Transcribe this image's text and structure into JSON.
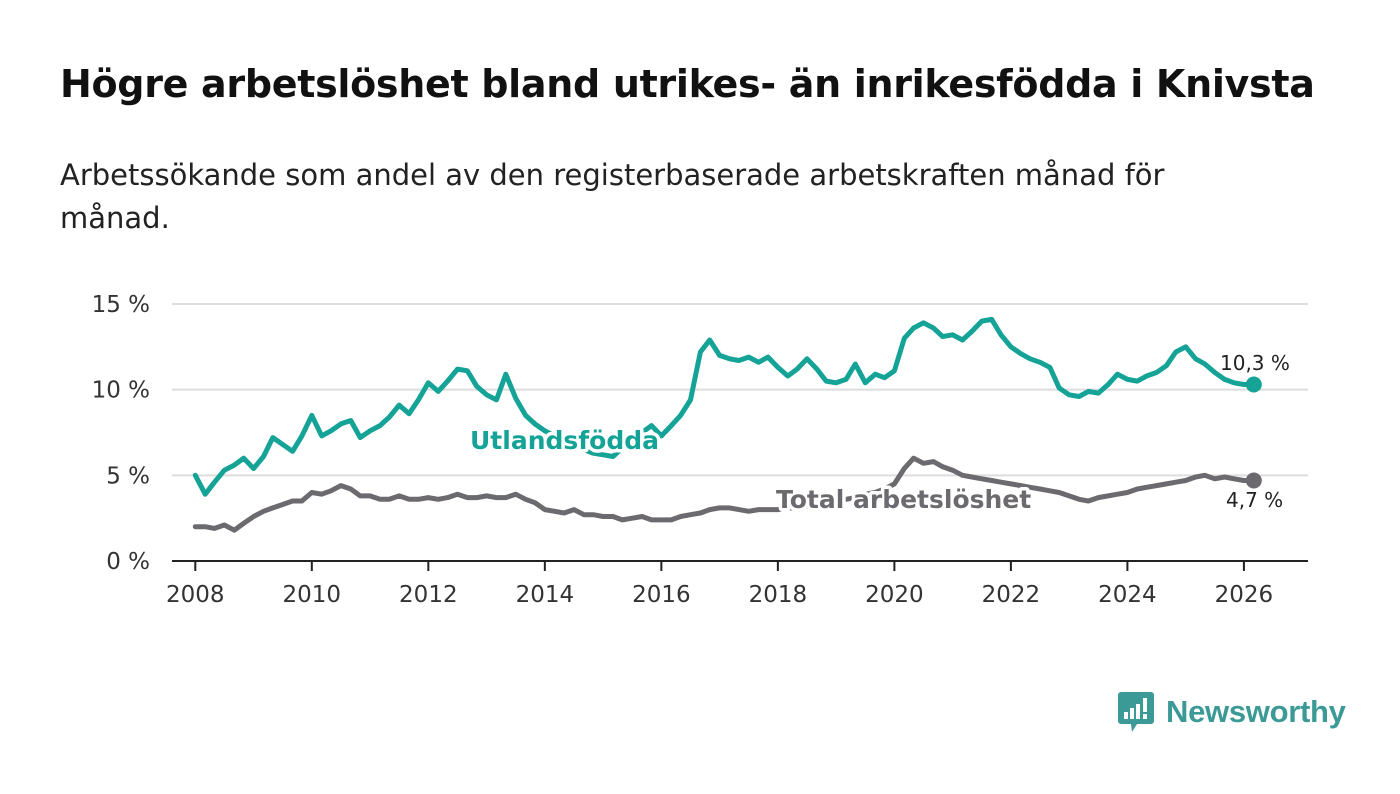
{
  "title": "Högre arbetslöshet bland utrikes- än inrikesfödda i Knivsta",
  "subtitle": "Arbetssökande som andel av den registerbaserade arbetskraften månad för månad.",
  "logo": {
    "text": "Newsworthy",
    "icon": "bar-chart-speech-bubble-icon",
    "color": "#3c9a96"
  },
  "colors": {
    "foreign_born": "#14a396",
    "total": "#6c6a6e",
    "gridline": "#dddddd",
    "axis": "#222222"
  },
  "chart_data": {
    "type": "line",
    "title": "Högre arbetslöshet bland utrikes- än inrikesfödda i Knivsta",
    "subtitle": "Arbetssökande som andel av den registerbaserade arbetskraften månad för månad.",
    "xlabel": "",
    "ylabel": "",
    "xlim": [
      2007.6,
      2027.1
    ],
    "ylim": [
      0,
      15
    ],
    "grid": true,
    "x_ticks": [
      2008,
      2010,
      2012,
      2014,
      2016,
      2018,
      2020,
      2022,
      2024,
      2026
    ],
    "x_tick_labels": [
      "2008",
      "2010",
      "2012",
      "2014",
      "2016",
      "2018",
      "2020",
      "2022",
      "2024",
      "2026"
    ],
    "y_ticks": [
      0,
      5,
      10,
      15
    ],
    "y_tick_labels": [
      "0 %",
      "5 %",
      "10 %",
      "15 %"
    ],
    "series": [
      {
        "name": "Utlandsfödda",
        "end_label": "10,3 %",
        "x": [
          2008.0,
          2008.17,
          2008.33,
          2008.5,
          2008.67,
          2008.83,
          2009.0,
          2009.17,
          2009.33,
          2009.5,
          2009.67,
          2009.83,
          2010.0,
          2010.17,
          2010.33,
          2010.5,
          2010.67,
          2010.83,
          2011.0,
          2011.17,
          2011.33,
          2011.5,
          2011.67,
          2011.83,
          2012.0,
          2012.17,
          2012.33,
          2012.5,
          2012.67,
          2012.83,
          2013.0,
          2013.17,
          2013.33,
          2013.5,
          2013.67,
          2013.83,
          2014.0,
          2014.17,
          2014.33,
          2014.5,
          2014.67,
          2014.83,
          2015.0,
          2015.17,
          2015.33,
          2015.5,
          2015.67,
          2015.83,
          2016.0,
          2016.17,
          2016.33,
          2016.5,
          2016.67,
          2016.83,
          2017.0,
          2017.17,
          2017.33,
          2017.5,
          2017.67,
          2017.83,
          2018.0,
          2018.17,
          2018.33,
          2018.5,
          2018.67,
          2018.83,
          2019.0,
          2019.17,
          2019.33,
          2019.5,
          2019.67,
          2019.83,
          2020.0,
          2020.17,
          2020.33,
          2020.5,
          2020.67,
          2020.83,
          2021.0,
          2021.17,
          2021.33,
          2021.5,
          2021.67,
          2021.83,
          2022.0,
          2022.17,
          2022.33,
          2022.5,
          2022.67,
          2022.83,
          2023.0,
          2023.17,
          2023.33,
          2023.5,
          2023.67,
          2023.83,
          2024.0,
          2024.17,
          2024.33,
          2024.5,
          2024.67,
          2024.83,
          2025.0,
          2025.17,
          2025.33,
          2025.5,
          2025.67,
          2025.83,
          2026.0,
          2026.17
        ],
        "values": [
          5.0,
          3.9,
          4.6,
          5.3,
          5.6,
          6.0,
          5.4,
          6.1,
          7.2,
          6.8,
          6.4,
          7.3,
          8.5,
          7.3,
          7.6,
          8.0,
          8.2,
          7.2,
          7.6,
          7.9,
          8.4,
          9.1,
          8.6,
          9.4,
          10.4,
          9.9,
          10.5,
          11.2,
          11.1,
          10.2,
          9.7,
          9.4,
          10.9,
          9.5,
          8.5,
          8.0,
          7.6,
          7.3,
          7.1,
          6.7,
          6.5,
          6.3,
          6.2,
          6.1,
          6.6,
          7.3,
          7.5,
          7.9,
          7.3,
          7.9,
          8.5,
          9.4,
          12.2,
          12.9,
          12.0,
          11.8,
          11.7,
          11.9,
          11.6,
          11.9,
          11.3,
          10.8,
          11.2,
          11.8,
          11.2,
          10.5,
          10.4,
          10.6,
          11.5,
          10.4,
          10.9,
          10.7,
          11.1,
          13.0,
          13.6,
          13.9,
          13.6,
          13.1,
          13.2,
          12.9,
          13.4,
          14.0,
          14.1,
          13.2,
          12.5,
          12.1,
          11.8,
          11.6,
          11.3,
          10.1,
          9.7,
          9.6,
          9.9,
          9.8,
          10.3,
          10.9,
          10.6,
          10.5,
          10.8,
          11.0,
          11.4,
          12.2,
          12.5,
          11.8,
          11.5,
          11.0,
          10.6,
          10.4,
          10.3,
          10.3
        ]
      },
      {
        "name": "Total arbetslöshet",
        "end_label": "4,7 %",
        "x": [
          2008.0,
          2008.17,
          2008.33,
          2008.5,
          2008.67,
          2008.83,
          2009.0,
          2009.17,
          2009.33,
          2009.5,
          2009.67,
          2009.83,
          2010.0,
          2010.17,
          2010.33,
          2010.5,
          2010.67,
          2010.83,
          2011.0,
          2011.17,
          2011.33,
          2011.5,
          2011.67,
          2011.83,
          2012.0,
          2012.17,
          2012.33,
          2012.5,
          2012.67,
          2012.83,
          2013.0,
          2013.17,
          2013.33,
          2013.5,
          2013.67,
          2013.83,
          2014.0,
          2014.17,
          2014.33,
          2014.5,
          2014.67,
          2014.83,
          2015.0,
          2015.17,
          2015.33,
          2015.5,
          2015.67,
          2015.83,
          2016.0,
          2016.17,
          2016.33,
          2016.5,
          2016.67,
          2016.83,
          2017.0,
          2017.17,
          2017.33,
          2017.5,
          2017.67,
          2017.83,
          2018.0,
          2018.17,
          2018.33,
          2018.5,
          2018.67,
          2018.83,
          2019.0,
          2019.17,
          2019.33,
          2019.5,
          2019.67,
          2019.83,
          2020.0,
          2020.17,
          2020.33,
          2020.5,
          2020.67,
          2020.83,
          2021.0,
          2021.17,
          2021.33,
          2021.5,
          2021.67,
          2021.83,
          2022.0,
          2022.17,
          2022.33,
          2022.5,
          2022.67,
          2022.83,
          2023.0,
          2023.17,
          2023.33,
          2023.5,
          2023.67,
          2023.83,
          2024.0,
          2024.17,
          2024.33,
          2024.5,
          2024.67,
          2024.83,
          2025.0,
          2025.17,
          2025.33,
          2025.5,
          2025.67,
          2025.83,
          2026.0,
          2026.17
        ],
        "values": [
          2.0,
          2.0,
          1.9,
          2.1,
          1.8,
          2.2,
          2.6,
          2.9,
          3.1,
          3.3,
          3.5,
          3.5,
          4.0,
          3.9,
          4.1,
          4.4,
          4.2,
          3.8,
          3.8,
          3.6,
          3.6,
          3.8,
          3.6,
          3.6,
          3.7,
          3.6,
          3.7,
          3.9,
          3.7,
          3.7,
          3.8,
          3.7,
          3.7,
          3.9,
          3.6,
          3.4,
          3.0,
          2.9,
          2.8,
          3.0,
          2.7,
          2.7,
          2.6,
          2.6,
          2.4,
          2.5,
          2.6,
          2.4,
          2.4,
          2.4,
          2.6,
          2.7,
          2.8,
          3.0,
          3.1,
          3.1,
          3.0,
          2.9,
          3.0,
          3.0,
          3.0,
          3.1,
          3.1,
          3.2,
          3.3,
          3.4,
          3.5,
          3.6,
          3.7,
          3.9,
          4.0,
          4.2,
          4.5,
          5.4,
          6.0,
          5.7,
          5.8,
          5.5,
          5.3,
          5.0,
          4.9,
          4.8,
          4.7,
          4.6,
          4.5,
          4.4,
          4.3,
          4.2,
          4.1,
          4.0,
          3.8,
          3.6,
          3.5,
          3.7,
          3.8,
          3.9,
          4.0,
          4.2,
          4.3,
          4.4,
          4.5,
          4.6,
          4.7,
          4.9,
          5.0,
          4.8,
          4.9,
          4.8,
          4.7,
          4.7
        ]
      }
    ]
  }
}
